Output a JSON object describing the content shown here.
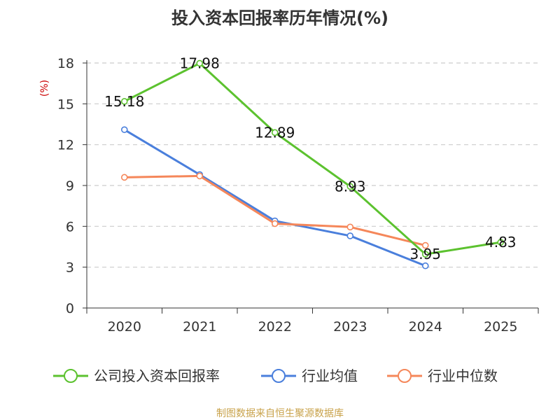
{
  "chart_data": {
    "type": "line",
    "title": "投入资本回报率历年情况(%)",
    "ylabel": "(%)",
    "xlabel": "",
    "categories": [
      "2020",
      "2021",
      "2022",
      "2023",
      "2024",
      "2025"
    ],
    "ylim": [
      0,
      18
    ],
    "yticks": [
      0,
      3,
      6,
      9,
      12,
      15,
      18
    ],
    "grid": true,
    "legend_position": "bottom",
    "series": [
      {
        "name": "公司投入资本回报率",
        "color": "#5cc22f",
        "values": [
          15.18,
          17.98,
          12.89,
          8.93,
          3.95,
          4.83
        ],
        "labels": [
          "15.18",
          "17.98",
          "12.89",
          "8.93",
          "3.95",
          "4.83"
        ],
        "show_labels": true
      },
      {
        "name": "行业均值",
        "color": "#4a7fdc",
        "values": [
          13.1,
          9.8,
          6.4,
          5.3,
          3.1,
          null
        ],
        "show_labels": false
      },
      {
        "name": "行业中位数",
        "color": "#f5875a",
        "values": [
          9.6,
          9.7,
          6.2,
          5.95,
          4.6,
          null
        ],
        "show_labels": false
      }
    ]
  },
  "colors": {
    "unit_label": "#cc0000",
    "source_text": "#c8a24a",
    "grid": "#cccccc",
    "axis": "#333333"
  },
  "source": "制图数据来自恒生聚源数据库"
}
